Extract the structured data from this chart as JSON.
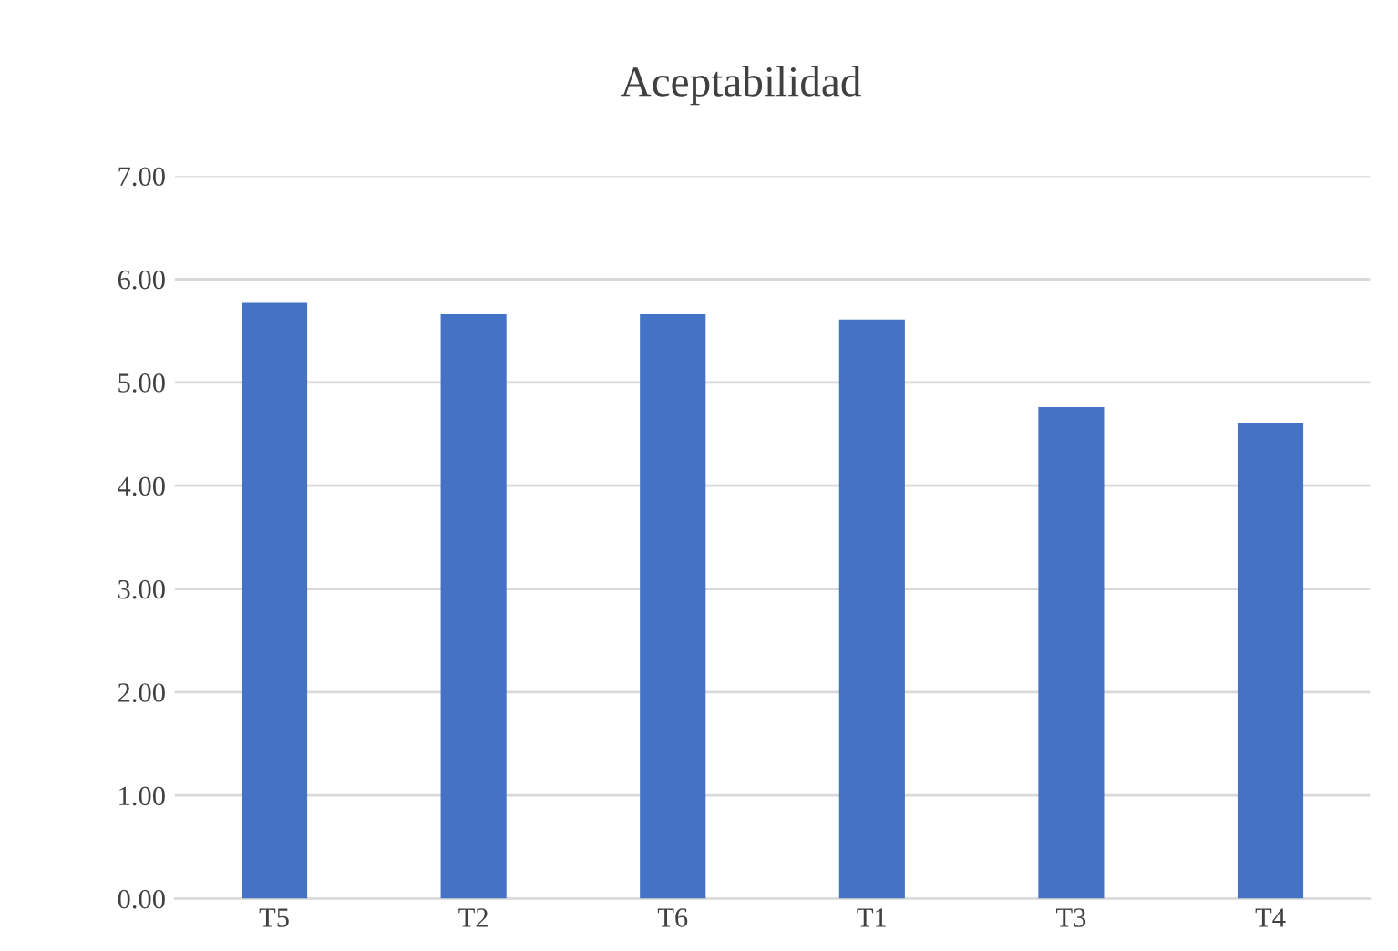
{
  "chart_data": {
    "type": "bar",
    "title": "Aceptabilidad",
    "categories": [
      "T5",
      "T2",
      "T6",
      "T1",
      "T3",
      "T4"
    ],
    "values": [
      5.77,
      5.66,
      5.66,
      5.61,
      4.76,
      4.61
    ],
    "color": "#4472c4",
    "ylim": [
      0,
      7
    ],
    "yticks": [
      {
        "value": 0,
        "label": "0.00"
      },
      {
        "value": 1,
        "label": "1.00"
      },
      {
        "value": 2,
        "label": "2.00"
      },
      {
        "value": 3,
        "label": "3.00"
      },
      {
        "value": 4,
        "label": "4.00"
      },
      {
        "value": 5,
        "label": "5.00"
      },
      {
        "value": 6,
        "label": "6.00"
      },
      {
        "value": 7,
        "label": "7.00"
      }
    ],
    "grid": "y"
  }
}
